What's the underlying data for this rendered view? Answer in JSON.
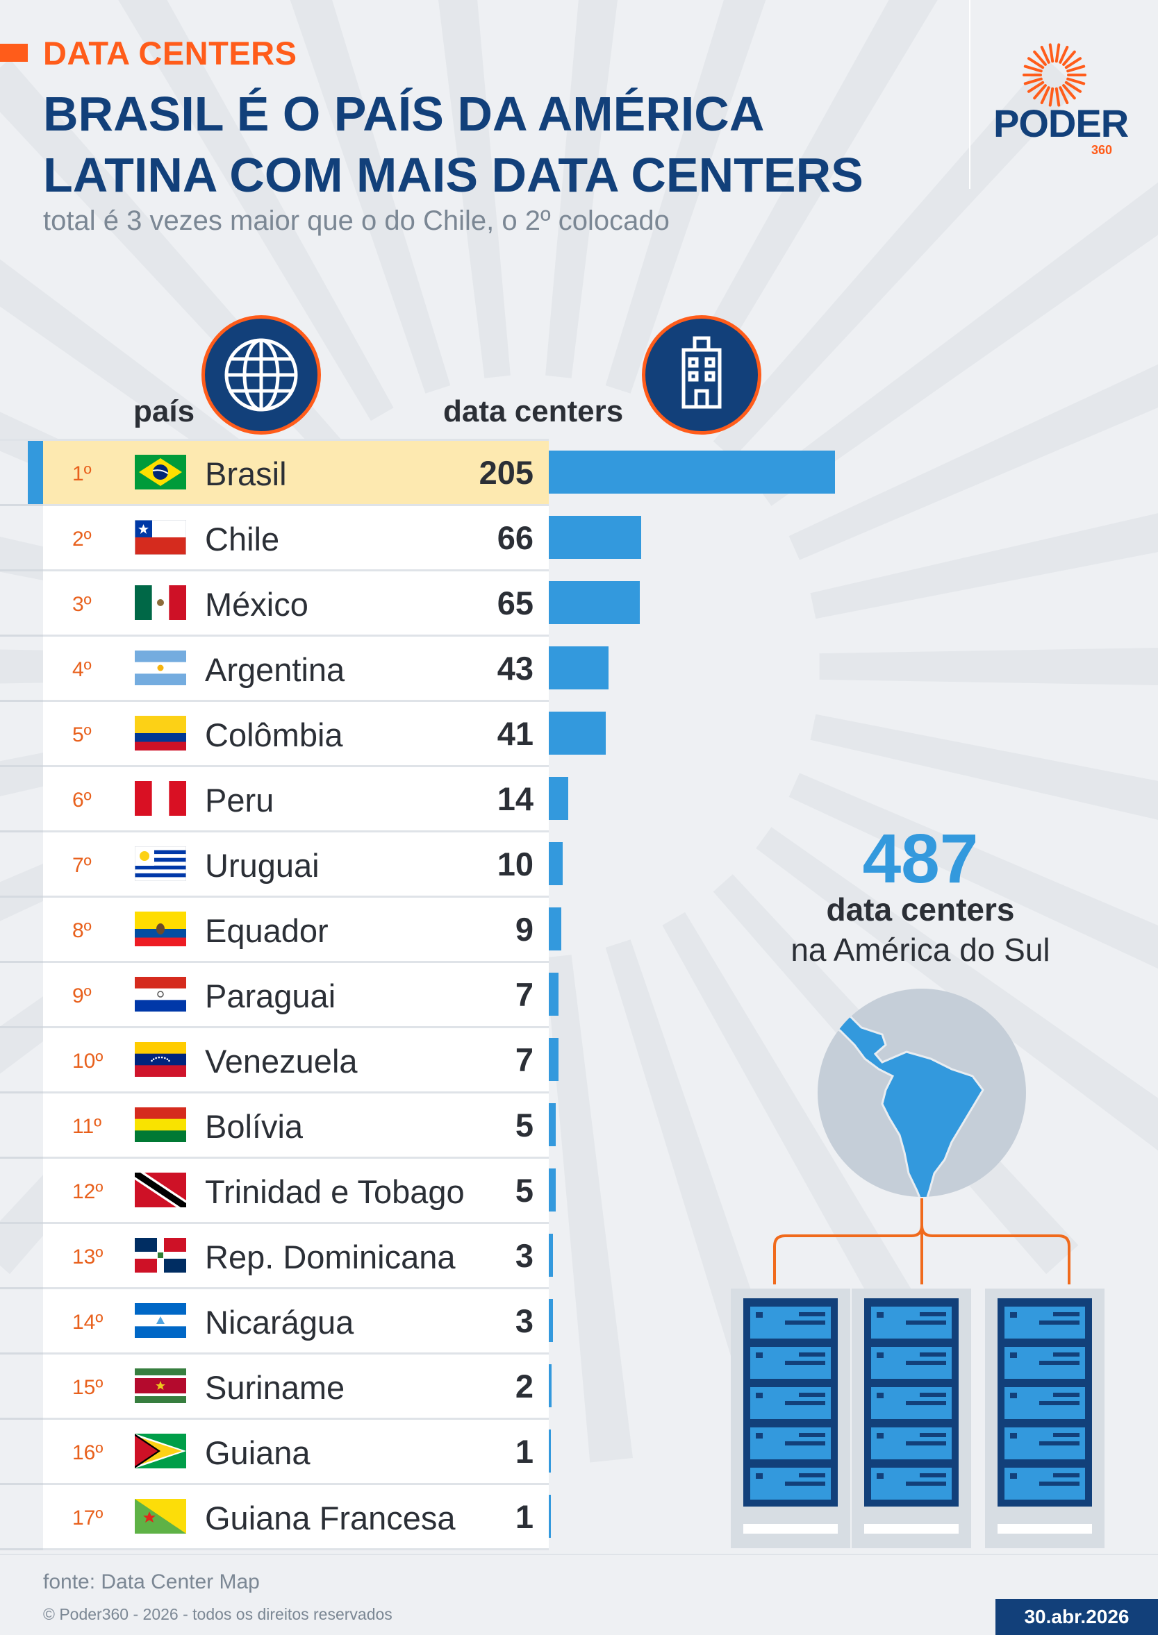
{
  "header": {
    "kicker": "DATA CENTERS",
    "title_line1": "BRASIL É O PAÍS DA AMÉRICA",
    "title_line2": "LATINA COM MAIS DATA CENTERS",
    "subtitle": "total é 3 vezes maior que o do Chile, o 2º colocado"
  },
  "logo": {
    "name": "PODER",
    "suffix": "360"
  },
  "columns": {
    "country_label": "país",
    "value_label": "data centers",
    "country_icon": "globe-icon",
    "value_icon": "building-icon"
  },
  "colors": {
    "brand_blue": "#12407a",
    "bar_blue": "#3399dd",
    "accent_orange": "#ff5c1a",
    "highlight": "#fde9b0"
  },
  "chart_data": {
    "type": "bar",
    "orientation": "horizontal",
    "title": "BRASIL É O PAÍS DA AMÉRICA LATINA COM MAIS DATA CENTERS",
    "xlabel": "data centers",
    "ylabel": "país",
    "categories": [
      "Brasil",
      "Chile",
      "México",
      "Argentina",
      "Colômbia",
      "Peru",
      "Uruguai",
      "Equador",
      "Paraguai",
      "Venezuela",
      "Bolívia",
      "Trinidad e Tobago",
      "Rep. Dominicana",
      "Nicarágua",
      "Suriname",
      "Guiana",
      "Guiana Francesa"
    ],
    "ranks": [
      "1º",
      "2º",
      "3º",
      "4º",
      "5º",
      "6º",
      "7º",
      "8º",
      "9º",
      "10º",
      "11º",
      "12º",
      "13º",
      "14º",
      "15º",
      "16º",
      "17º"
    ],
    "values": [
      205,
      66,
      65,
      43,
      41,
      14,
      10,
      9,
      7,
      7,
      5,
      5,
      3,
      3,
      2,
      1,
      1
    ],
    "highlight_index": 0,
    "grid": false
  },
  "summary": {
    "total": "487",
    "label_line1": "data centers",
    "label_line2": "na América do Sul"
  },
  "footer": {
    "source": "fonte: Data Center Map",
    "copyright": "© Poder360 - 2026 - todos os direitos reservados",
    "date": "30.abr.2026"
  }
}
